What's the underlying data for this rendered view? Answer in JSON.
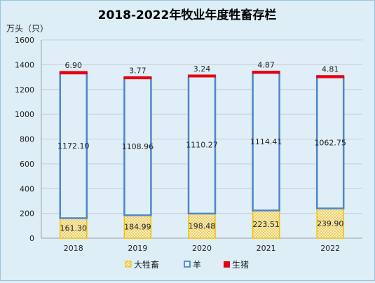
{
  "chart_data": {
    "type": "bar",
    "stacked": true,
    "title": "2018-2022年牧业年度牲畜存栏",
    "ylabel": "万头（只）",
    "xlabel": "",
    "ylim": [
      0,
      1600
    ],
    "yticks": [
      0,
      200,
      400,
      600,
      800,
      1000,
      1200,
      1400,
      1600
    ],
    "grid": true,
    "legend_position": "bottom",
    "categories": [
      "2018",
      "2019",
      "2020",
      "2021",
      "2022"
    ],
    "series": [
      {
        "name": "大牲畜",
        "values": [
          161.3,
          184.99,
          198.48,
          223.51,
          239.9
        ],
        "labels": [
          "161.30",
          "184.99",
          "198.48",
          "223.51",
          "239.90"
        ],
        "color": "#f2c200"
      },
      {
        "name": "羊",
        "values": [
          1172.1,
          1108.96,
          1110.27,
          1114.41,
          1062.75
        ],
        "labels": [
          "1172.10",
          "1108.96",
          "1110.27",
          "1114.41",
          "1062.75"
        ],
        "color": "#4f86c6"
      },
      {
        "name": "生猪",
        "values": [
          6.9,
          3.77,
          3.24,
          4.87,
          4.81
        ],
        "labels": [
          "6.90",
          "3.77",
          "3.24",
          "4.87",
          "4.81"
        ],
        "color": "#e60012"
      }
    ]
  }
}
